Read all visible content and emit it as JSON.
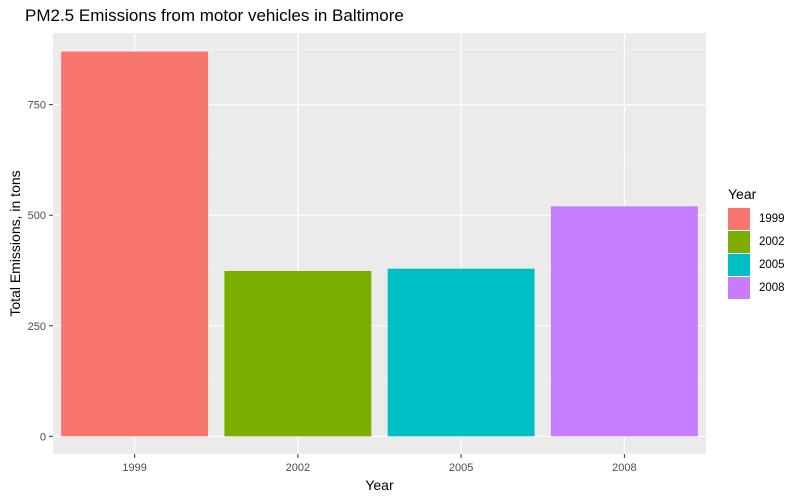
{
  "chart_data": {
    "type": "bar",
    "title": "PM2.5 Emissions from motor vehicles in Baltimore",
    "xlabel": "Year",
    "ylabel": "Total Emissions, in tons",
    "categories": [
      "1999",
      "2002",
      "2005",
      "2008"
    ],
    "values": [
      870,
      374,
      379,
      520
    ],
    "colors": [
      "#F8766D",
      "#7CAE00",
      "#00BFC4",
      "#C77CFF"
    ],
    "yticks": [
      0,
      250,
      500,
      750
    ],
    "ylim": [
      -40,
      912
    ],
    "grid": true,
    "legend": {
      "title": "Year",
      "position": "right",
      "entries": [
        "1999",
        "2002",
        "2005",
        "2008"
      ]
    }
  }
}
